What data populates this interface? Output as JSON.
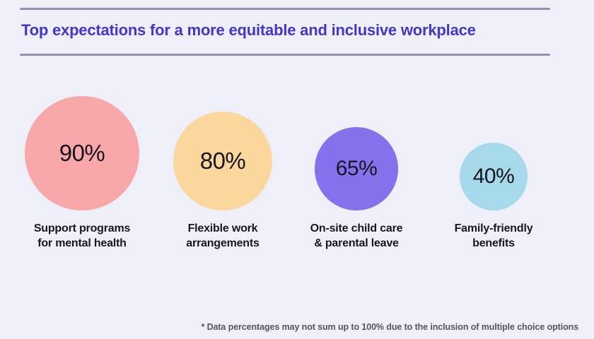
{
  "page": {
    "background_color": "#efeff9"
  },
  "header": {
    "title": "Top expectations for a more equitable and inclusive workplace",
    "title_color": "#4436c6",
    "rule_color": "#938dba"
  },
  "chart_data": {
    "type": "bubble",
    "title": "Top expectations for a more equitable and inclusive workplace",
    "unit": "%",
    "items": [
      {
        "label": "Support programs for mental health",
        "label_lines": [
          "Support programs",
          "for mental health"
        ],
        "value": 90,
        "value_label": "90%",
        "color": "#f8a8a8"
      },
      {
        "label": "Flexible work arrangements",
        "label_lines": [
          "Flexible work",
          "arrangements"
        ],
        "value": 80,
        "value_label": "80%",
        "color": "#fbd79e"
      },
      {
        "label": "On-site child care & parental leave",
        "label_lines": [
          "On-site child care",
          "& parental leave"
        ],
        "value": 65,
        "value_label": "65%",
        "color": "#8471ec"
      },
      {
        "label": "Family-friendly benefits",
        "label_lines": [
          "Family-friendly",
          "benefits"
        ],
        "value": 40,
        "value_label": "40%",
        "color": "#a6d9ea"
      }
    ],
    "footnote": "* Data percentages may not sum up to 100% due to the inclusion of multiple choice options",
    "value_text_color": "#17151f",
    "label_text_color": "#17171c",
    "footnote_color": "#55555f",
    "layout": "circles bottom-aligned, sized by value, in descending order left to right"
  }
}
